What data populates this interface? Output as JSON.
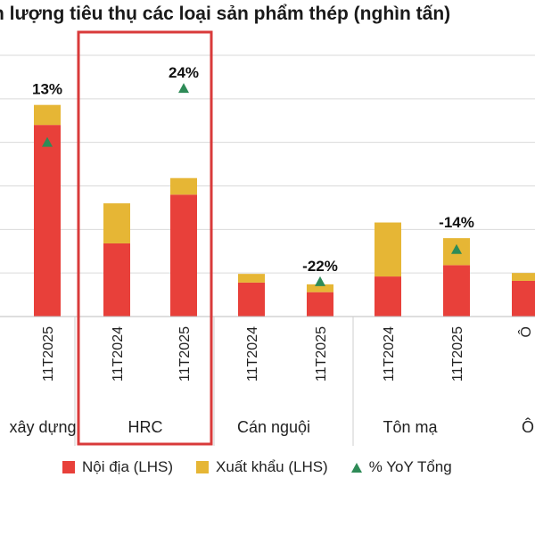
{
  "title": "n lượng tiêu thụ các loại sản phẩm thép (nghìn tấn)",
  "chart_data": {
    "type": "bar",
    "stacked": true,
    "grid": true,
    "categories": [
      "11T2025",
      "11T2024",
      "11T2025",
      "11T2024",
      "11T2025",
      "11T2024",
      "11T2025",
      "Ô"
    ],
    "groups": [
      "xây dựng",
      "HRC",
      "Cán nguội",
      "Tôn mạ",
      "Ô"
    ],
    "group_of_bar": [
      0,
      1,
      1,
      2,
      2,
      3,
      3,
      4
    ],
    "series": [
      {
        "name": "Nội địa (LHS)",
        "color": "#e8403a",
        "values": [
          220,
          84,
          140,
          39,
          28,
          46,
          59,
          41
        ]
      },
      {
        "name": "Xuất khẩu (LHS)",
        "color": "#e6b635",
        "values": [
          23,
          46,
          19,
          10,
          9,
          62,
          31,
          9
        ]
      }
    ],
    "yoy_marker": {
      "name": "% YoY Tổng",
      "color": "#2e8b57",
      "values": [
        200,
        null,
        262,
        null,
        40,
        null,
        77,
        null
      ]
    },
    "data_labels": [
      "13%",
      "",
      "24%",
      "",
      "-22%",
      "",
      "-14%",
      ""
    ],
    "ylim": [
      0,
      300
    ]
  },
  "highlight": {
    "group": "HRC",
    "color": "#d93a3a"
  }
}
